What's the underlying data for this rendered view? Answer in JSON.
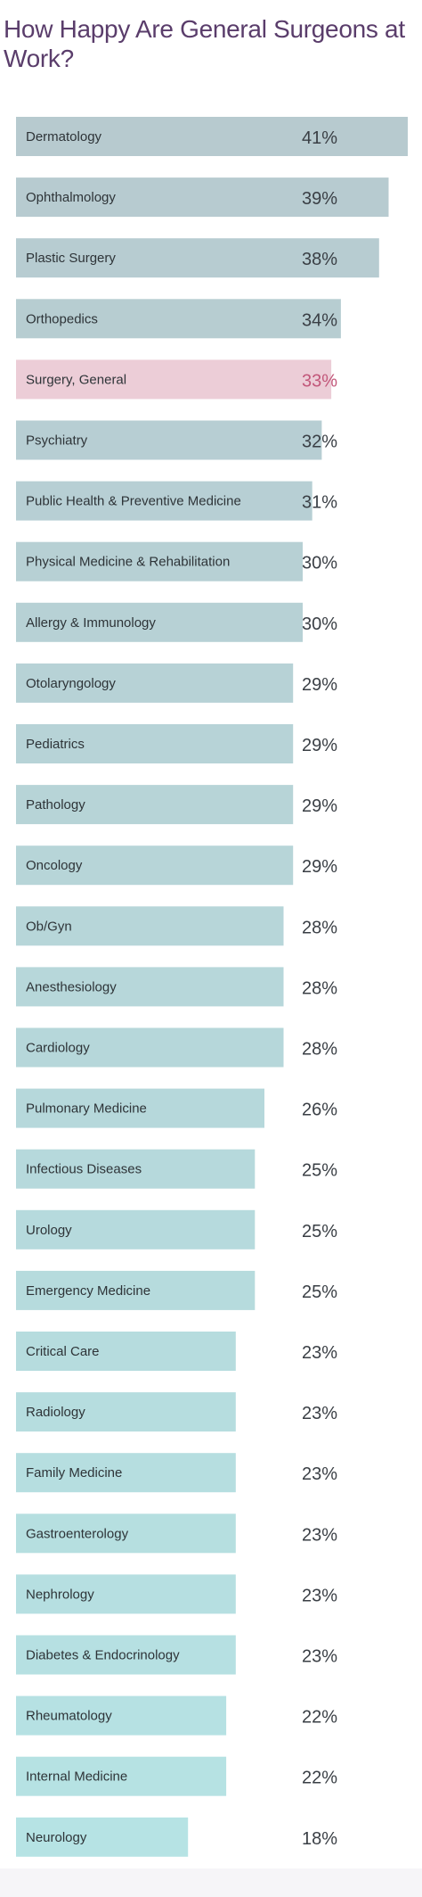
{
  "title": "How Happy Are General Surgeons at Work?",
  "colors": {
    "title": "#5a3d6b",
    "highlight_bar": "#eccdd7",
    "highlight_value": "#c2577a",
    "bar_top": "#b7cacf",
    "bar_bottom": "#b6e3e4",
    "label_text": "#2e3438",
    "value_text": "#3a3f45"
  },
  "chart_data": {
    "type": "bar",
    "orientation": "horizontal",
    "categories": [
      "Dermatology",
      "Ophthalmology",
      "Plastic Surgery",
      "Orthopedics",
      "Surgery, General",
      "Psychiatry",
      "Public Health & Preventive Medicine",
      "Physical Medicine & Rehabilitation",
      "Allergy & Immunology",
      "Otolaryngology",
      "Pediatrics",
      "Pathology",
      "Oncology",
      "Ob/Gyn",
      "Anesthesiology",
      "Cardiology",
      "Pulmonary Medicine",
      "Infectious Diseases",
      "Urology",
      "Emergency Medicine",
      "Critical Care",
      "Radiology",
      "Family Medicine",
      "Gastroenterology",
      "Nephrology",
      "Diabetes & Endocrinology",
      "Rheumatology",
      "Internal Medicine",
      "Neurology"
    ],
    "values": [
      41,
      39,
      38,
      34,
      33,
      32,
      31,
      30,
      30,
      29,
      29,
      29,
      29,
      28,
      28,
      28,
      26,
      25,
      25,
      25,
      23,
      23,
      23,
      23,
      23,
      23,
      22,
      22,
      18
    ],
    "value_labels": [
      "41%",
      "39%",
      "38%",
      "34%",
      "33%",
      "32%",
      "31%",
      "30%",
      "30%",
      "29%",
      "29%",
      "29%",
      "29%",
      "28%",
      "28%",
      "28%",
      "26%",
      "25%",
      "25%",
      "25%",
      "23%",
      "23%",
      "23%",
      "23%",
      "23%",
      "23%",
      "22%",
      "22%",
      "18%"
    ],
    "highlight": "Surgery, General",
    "unit": "%",
    "xlim": [
      0,
      41
    ],
    "grid": false,
    "legend": "none"
  }
}
